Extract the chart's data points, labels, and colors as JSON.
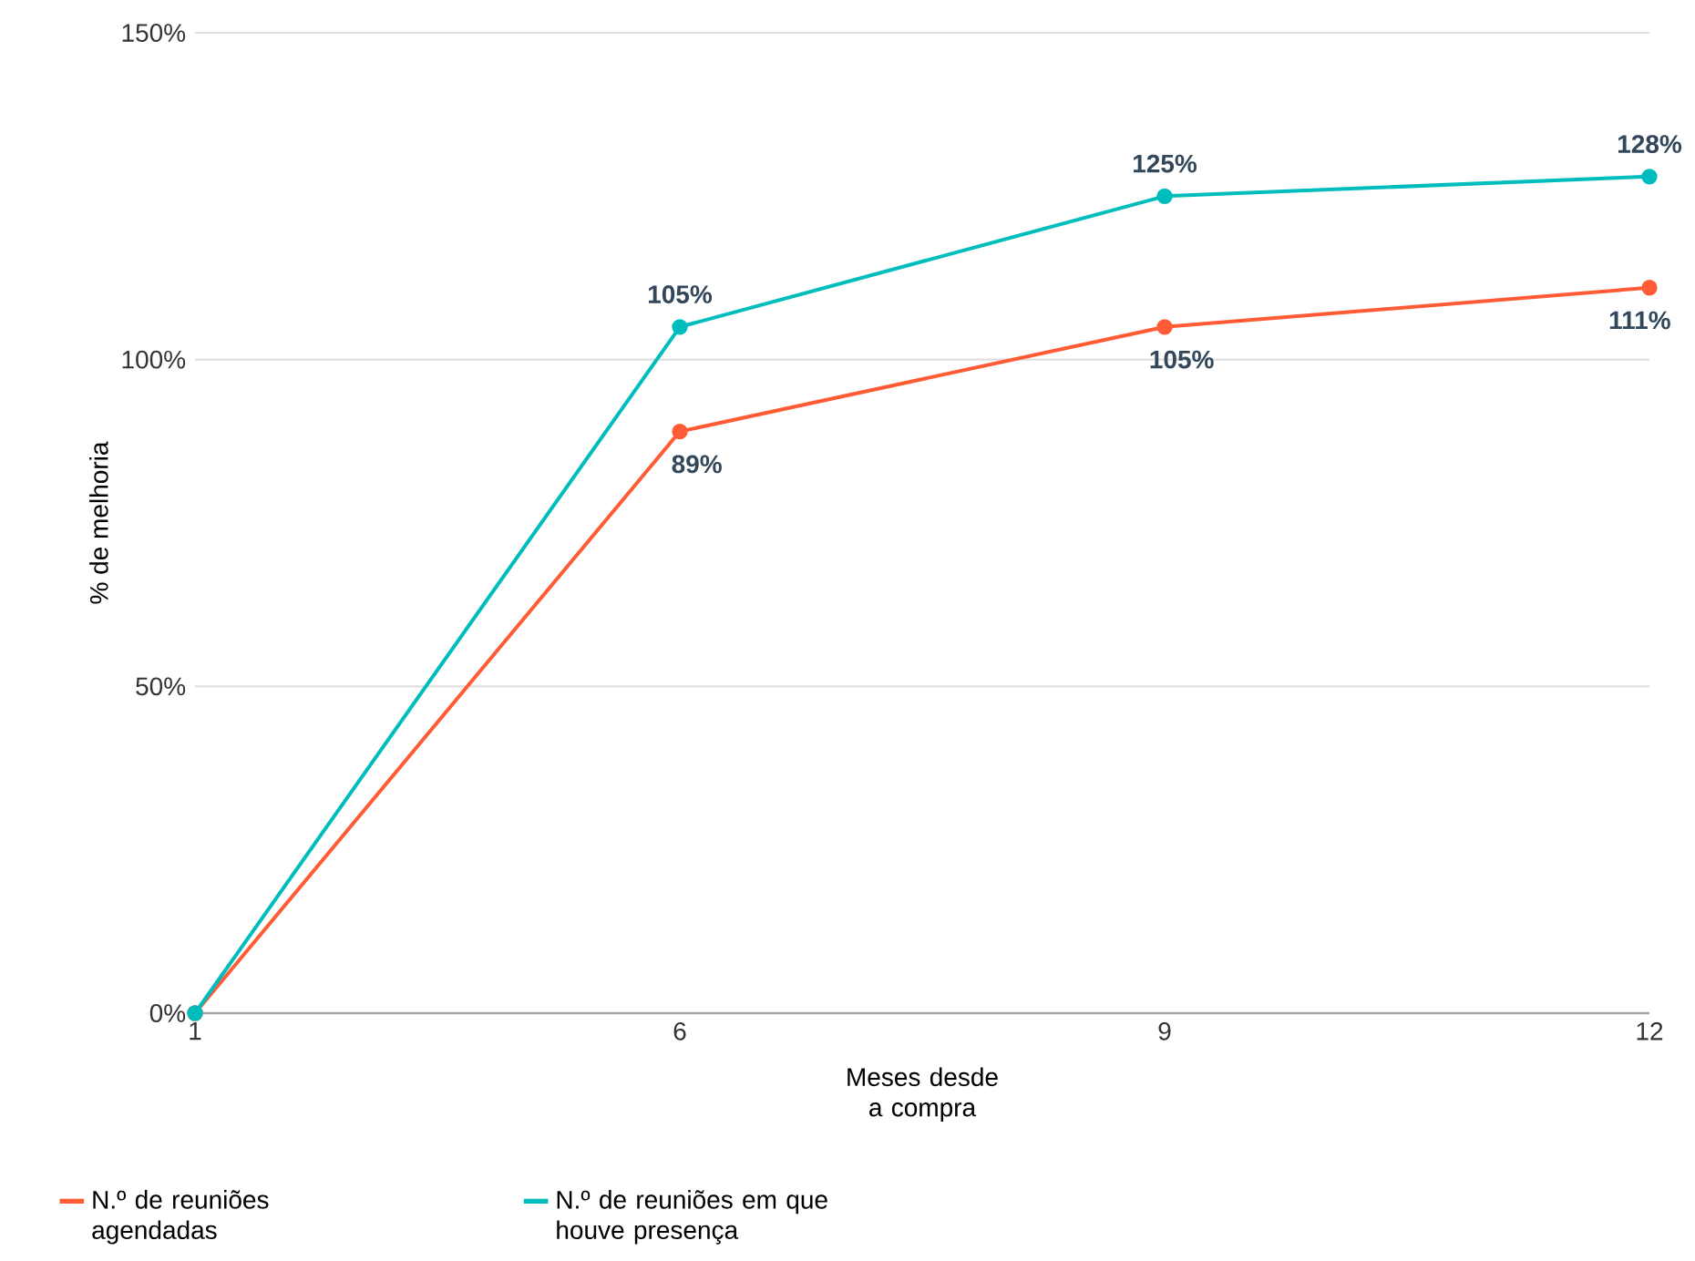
{
  "chart_data": {
    "type": "line",
    "xlabel": "Meses desde a compra",
    "ylabel": "% de melhoria",
    "categories": [
      "1",
      "6",
      "9",
      "12"
    ],
    "series": [
      {
        "name": "N.º de reuniões agendadas",
        "color": "#ff5c35",
        "values": [
          0,
          89,
          105,
          111
        ],
        "value_labels": [
          null,
          "89%",
          "105%",
          "111%"
        ]
      },
      {
        "name": "N.º de reuniões em que houve presença",
        "color": "#00bdbd",
        "values": [
          0,
          105,
          125,
          128
        ],
        "value_labels": [
          null,
          "105%",
          "125%",
          "128%"
        ]
      }
    ],
    "ylim": [
      0,
      150
    ],
    "yticks": [
      {
        "value": 0,
        "label": "0%"
      },
      {
        "value": 50,
        "label": "50%"
      },
      {
        "value": 100,
        "label": "100%"
      },
      {
        "value": 150,
        "label": "150%"
      }
    ],
    "grid": "y",
    "legend": "bottom left",
    "marker": "circle",
    "line_style": "solid"
  }
}
